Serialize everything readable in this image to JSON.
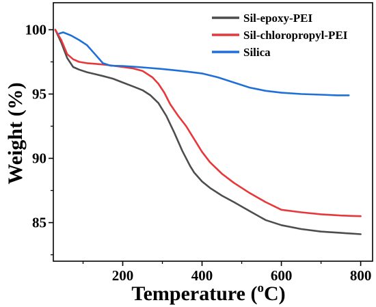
{
  "chart_data": {
    "type": "line",
    "title": "",
    "xlabel": {
      "main": "Temperature (",
      "sup": "o",
      "unit": "C)"
    },
    "ylabel": "Weight (%)",
    "xlim": [
      25,
      830
    ],
    "ylim": [
      82,
      102.1
    ],
    "xticks": [
      200,
      400,
      600,
      800
    ],
    "xtick_labels": [
      "200",
      "400",
      "600",
      "800"
    ],
    "yticks": [
      85,
      90,
      95,
      100
    ],
    "ytick_labels": [
      "85",
      "90",
      "95",
      "100"
    ],
    "grid": false,
    "legend_position": "top-right",
    "series": [
      {
        "name": "Sil-epoxy-PEI",
        "color": "#4d4d4f",
        "x": [
          30,
          45,
          60,
          75,
          90,
          110,
          130,
          150,
          175,
          200,
          225,
          250,
          270,
          290,
          310,
          330,
          350,
          370,
          380,
          400,
          420,
          450,
          480,
          520,
          560,
          600,
          650,
          700,
          750,
          800
        ],
        "y": [
          100,
          99.0,
          97.8,
          97.1,
          96.9,
          96.7,
          96.55,
          96.4,
          96.2,
          95.9,
          95.6,
          95.3,
          94.9,
          94.3,
          93.3,
          92.0,
          90.6,
          89.4,
          88.9,
          88.2,
          87.7,
          87.1,
          86.6,
          85.9,
          85.2,
          84.8,
          84.5,
          84.3,
          84.2,
          84.1
        ]
      },
      {
        "name": "Sil-chloropropyl-PEI",
        "color": "#e8373a",
        "x": [
          30,
          45,
          60,
          75,
          90,
          110,
          130,
          150,
          175,
          200,
          225,
          250,
          275,
          290,
          305,
          320,
          340,
          360,
          380,
          400,
          420,
          450,
          480,
          520,
          560,
          600,
          650,
          700,
          750,
          800
        ],
        "y": [
          100,
          99.2,
          98.1,
          97.7,
          97.5,
          97.4,
          97.35,
          97.3,
          97.2,
          97.1,
          97.0,
          96.8,
          96.3,
          95.8,
          95.1,
          94.2,
          93.3,
          92.5,
          91.5,
          90.5,
          89.7,
          88.8,
          88.1,
          87.3,
          86.6,
          86.0,
          85.8,
          85.65,
          85.55,
          85.5
        ]
      },
      {
        "name": "Silica",
        "color": "#1f6fd9",
        "x": [
          40,
          50,
          70,
          90,
          110,
          130,
          150,
          170,
          200,
          230,
          260,
          300,
          330,
          360,
          400,
          440,
          480,
          520,
          560,
          600,
          650,
          700,
          740,
          770
        ],
        "y": [
          99.7,
          99.8,
          99.55,
          99.2,
          98.8,
          98.1,
          97.4,
          97.2,
          97.18,
          97.12,
          97.05,
          96.95,
          96.85,
          96.75,
          96.6,
          96.3,
          95.9,
          95.5,
          95.25,
          95.1,
          95.0,
          94.95,
          94.9,
          94.9
        ]
      }
    ]
  }
}
